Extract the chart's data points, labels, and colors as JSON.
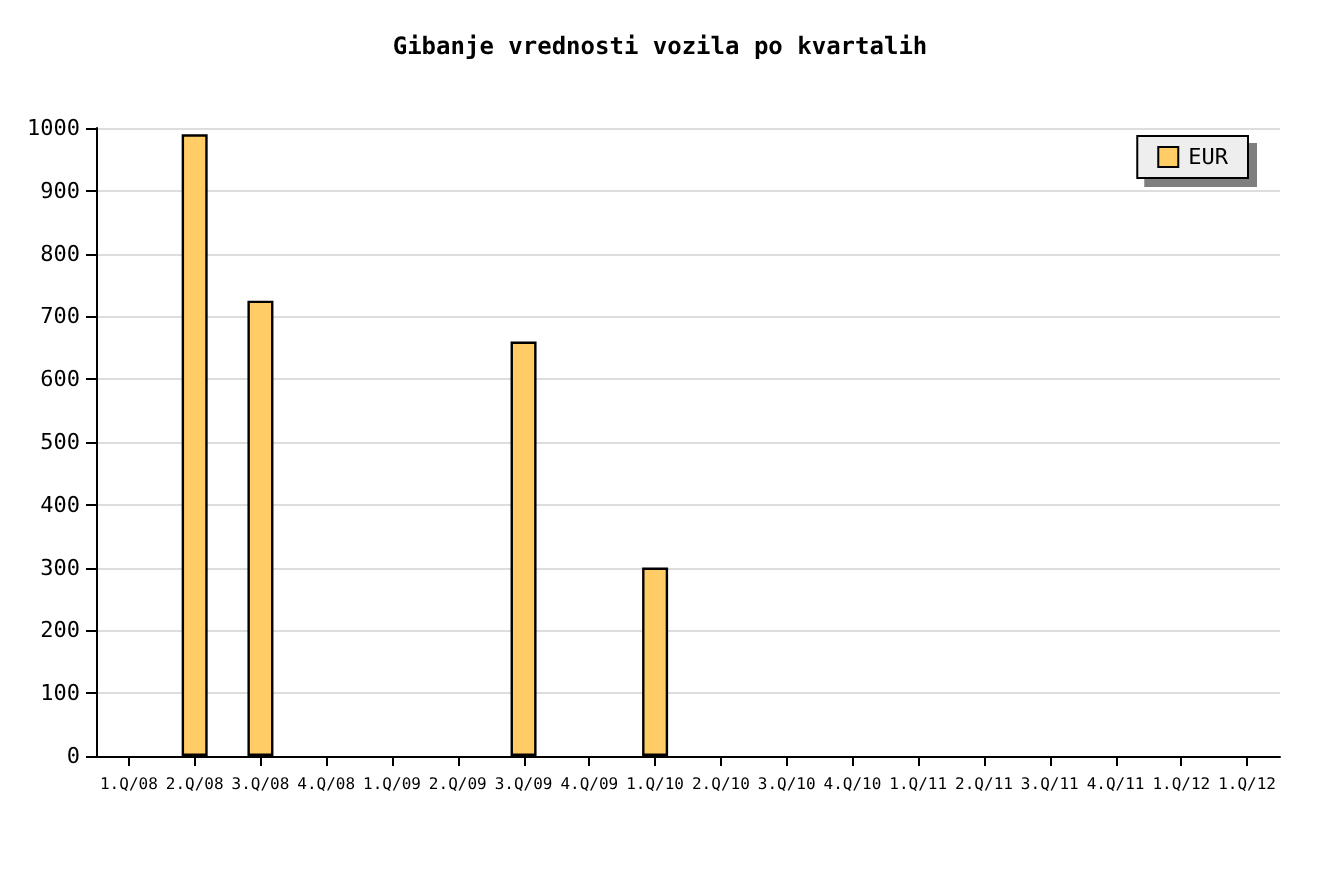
{
  "chart_data": {
    "type": "bar",
    "title": "Gibanje vrednosti vozila po kvartalih",
    "categories": [
      "1.Q/08",
      "2.Q/08",
      "3.Q/08",
      "4.Q/08",
      "1.Q/09",
      "2.Q/09",
      "3.Q/09",
      "4.Q/09",
      "1.Q/10",
      "2.Q/10",
      "3.Q/10",
      "4.Q/10",
      "1.Q/11",
      "2.Q/11",
      "3.Q/11",
      "4.Q/11",
      "1.Q/12",
      "1.Q/12"
    ],
    "series": [
      {
        "name": "EUR",
        "color": "#ffcc66",
        "values": [
          null,
          990,
          725,
          null,
          null,
          null,
          660,
          null,
          300,
          null,
          null,
          null,
          null,
          null,
          null,
          null,
          null,
          null
        ]
      }
    ],
    "ylim": [
      0,
      1000
    ],
    "yticks": [
      0,
      100,
      200,
      300,
      400,
      500,
      600,
      700,
      800,
      900,
      1000
    ],
    "grid": "y",
    "legend": "top right"
  }
}
